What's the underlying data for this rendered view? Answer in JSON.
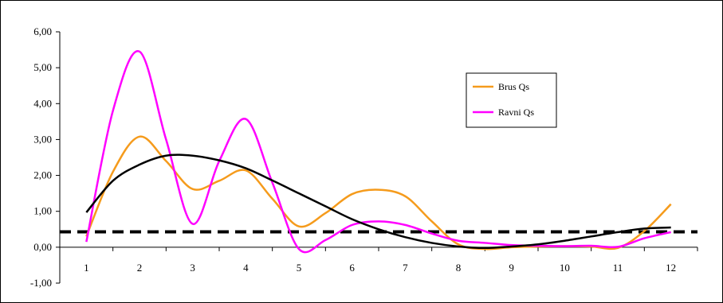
{
  "chart_data": {
    "type": "line",
    "smoothed": true,
    "x": [
      1,
      1.5,
      2,
      2.5,
      3,
      3.5,
      4,
      4.5,
      5,
      5.5,
      6,
      6.5,
      7,
      7.5,
      8,
      8.5,
      9,
      9.5,
      10,
      10.5,
      11,
      11.5,
      12
    ],
    "categories": [
      "1",
      "2",
      "3",
      "4",
      "5",
      "6",
      "7",
      "8",
      "9",
      "10",
      "11",
      "12"
    ],
    "ylim": [
      -1,
      6
    ],
    "yticks": [
      "-1,00",
      "0,00",
      "1,00",
      "2,00",
      "3,00",
      "4,00",
      "5,00",
      "6,00"
    ],
    "grid": false,
    "legend_placement": "right",
    "series": [
      {
        "name": "Brus Qs",
        "color": "#f59b1c",
        "values": [
          0.3,
          2.1,
          3.08,
          2.4,
          1.62,
          1.85,
          2.14,
          1.35,
          0.58,
          0.95,
          1.48,
          1.6,
          1.42,
          0.72,
          0.08,
          -0.05,
          0.0,
          0.02,
          0.03,
          0.02,
          -0.02,
          0.45,
          1.2
        ]
      },
      {
        "name": "Ravni Qs",
        "color": "#ff00ff",
        "values": [
          0.15,
          3.8,
          5.45,
          3.0,
          0.65,
          2.4,
          3.57,
          1.8,
          -0.05,
          0.2,
          0.62,
          0.72,
          0.62,
          0.38,
          0.18,
          0.12,
          0.06,
          0.04,
          0.03,
          0.04,
          0.01,
          0.25,
          0.42
        ]
      },
      {
        "color": "#000000",
        "values": [
          0.97,
          1.85,
          2.3,
          2.55,
          2.55,
          2.42,
          2.2,
          1.86,
          1.5,
          1.14,
          0.78,
          0.5,
          0.28,
          0.12,
          0.02,
          -0.02,
          0.02,
          0.08,
          0.18,
          0.3,
          0.42,
          0.52,
          0.55
        ]
      }
    ],
    "reference_line": {
      "y": 0.43,
      "style": "dashed",
      "color": "#000000"
    }
  }
}
